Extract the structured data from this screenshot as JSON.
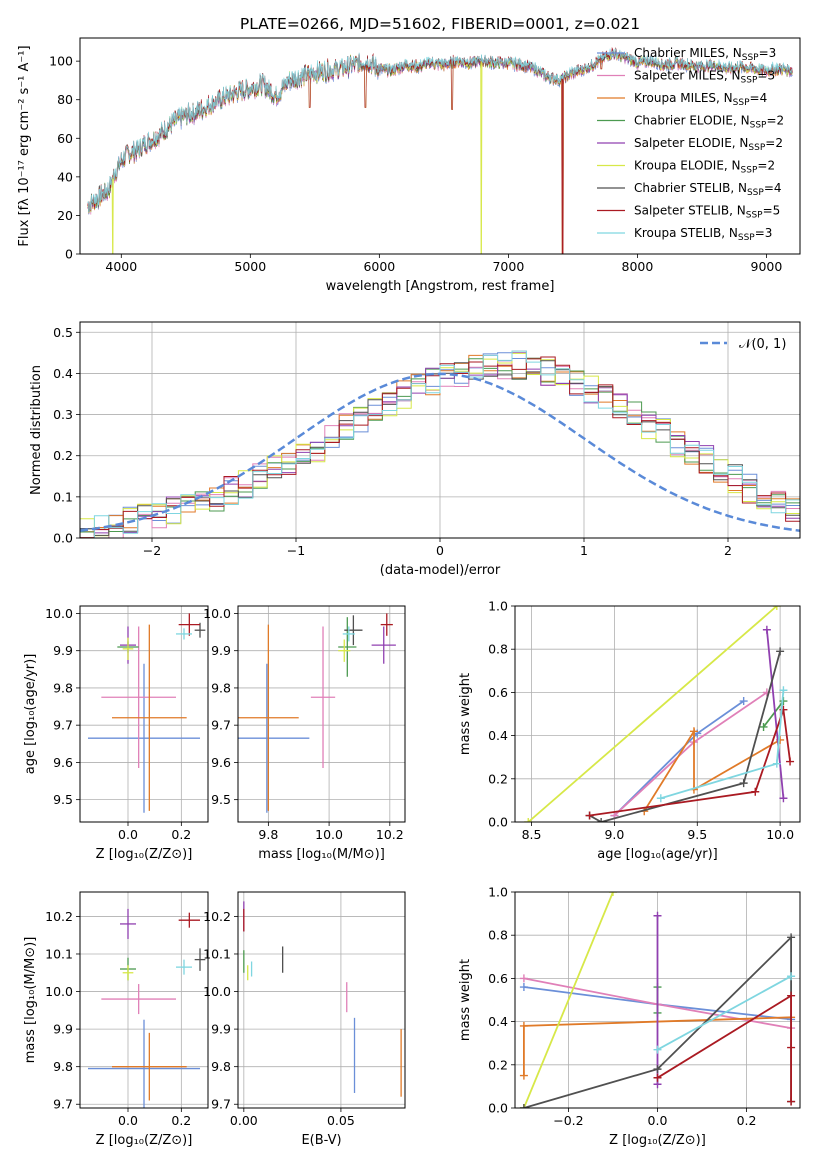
{
  "figure": {
    "title": "PLATE=0266, MJD=51602, FIBERID=0001, z=0.021"
  },
  "colors": {
    "Chabrier MILES": "#6b8fd8",
    "Salpeter MILES": "#e080b8",
    "Kroupa MILES": "#e07a28",
    "Chabrier ELODIE": "#4c9a50",
    "Salpeter ELODIE": "#9040b0",
    "Kroupa ELODIE": "#d7e848",
    "Chabrier STELIB": "#505050",
    "Salpeter STELIB": "#aa1a22",
    "Kroupa STELIB": "#7fd6e0"
  },
  "chart_data": [
    {
      "id": "spectrum",
      "type": "line",
      "title": "PLATE=0266, MJD=51602, FIBERID=0001, z=0.021",
      "xlabel": "wavelength [Angstrom, rest frame]",
      "ylabel": "Flux [fλ 10⁻¹⁷ erg cm⁻² s⁻¹ A⁻¹]",
      "xlim": [
        3680,
        9260
      ],
      "ylim": [
        0,
        112
      ],
      "xticks": [
        4000,
        5000,
        6000,
        7000,
        8000,
        9000
      ],
      "yticks": [
        0,
        20,
        40,
        60,
        80,
        100
      ],
      "grid": false,
      "legend_position": "right",
      "continuum_x": [
        3740,
        3800,
        3900,
        3950,
        4000,
        4050,
        4100,
        4150,
        4200,
        4300,
        4400,
        4500,
        4600,
        4700,
        4800,
        4900,
        5000,
        5100,
        5200,
        5300,
        5400,
        5500,
        5600,
        5700,
        5800,
        5900,
        6000,
        6100,
        6200,
        6300,
        6400,
        6500,
        6600,
        6700,
        6800,
        6900,
        7000,
        7100,
        7200,
        7300,
        7400,
        7500,
        7600,
        7700,
        7800,
        7900,
        8000,
        8100,
        8200,
        8300,
        8400,
        8500,
        8600,
        8700,
        8800,
        8900,
        9000,
        9100,
        9200
      ],
      "continuum_y": [
        25,
        28,
        33,
        42,
        48,
        52,
        53,
        55,
        58,
        62,
        68,
        72,
        74,
        78,
        81,
        84,
        86,
        88,
        82,
        90,
        92,
        94,
        95,
        96,
        98,
        100,
        96,
        95,
        98,
        97,
        99,
        98,
        100,
        99,
        100,
        99,
        99,
        98,
        96,
        92,
        90,
        94,
        96,
        100,
        104,
        102,
        99,
        100,
        98,
        99,
        98,
        97,
        98,
        96,
        97,
        96,
        95,
        96,
        95
      ],
      "features": [
        {
          "x": 3934,
          "y": 0
        },
        {
          "x": 5460,
          "y": 76
        },
        {
          "x": 5892,
          "y": 76
        },
        {
          "x": 6563,
          "y": 75
        },
        {
          "x": 6790,
          "y": 0
        },
        {
          "x": 7420,
          "y": 0
        },
        {
          "x": 7720,
          "y": 96
        }
      ],
      "series": [
        {
          "name": "Chabrier MILES, N",
          "n": "3"
        },
        {
          "name": "Salpeter MILES, N",
          "n": "3"
        },
        {
          "name": "Kroupa MILES, N",
          "n": "4"
        },
        {
          "name": "Chabrier ELODIE, N",
          "n": "2"
        },
        {
          "name": "Salpeter ELODIE, N",
          "n": "2"
        },
        {
          "name": "Kroupa ELODIE, N",
          "n": "2"
        },
        {
          "name": "Chabrier STELIB, N",
          "n": "4"
        },
        {
          "name": "Salpeter STELIB, N",
          "n": "5"
        },
        {
          "name": "Kroupa STELIB, N",
          "n": "3"
        }
      ]
    },
    {
      "id": "residuals",
      "type": "histogram",
      "xlabel": "(data-model)/error",
      "ylabel": "Normed distribution",
      "xlim": [
        -2.5,
        2.5
      ],
      "ylim": [
        0,
        0.525
      ],
      "xticks": [
        -2,
        -1,
        0,
        1,
        2
      ],
      "yticks": [
        0.0,
        0.1,
        0.2,
        0.3,
        0.4,
        0.5
      ],
      "grid": true,
      "legend_position": "top-right",
      "legend_label": "𝒩(0, 1)",
      "bin_start": -2.5,
      "bin_width": 0.1,
      "mean_values": [
        0.02,
        0.025,
        0.03,
        0.04,
        0.05,
        0.055,
        0.065,
        0.075,
        0.09,
        0.1,
        0.115,
        0.13,
        0.15,
        0.165,
        0.18,
        0.2,
        0.22,
        0.245,
        0.27,
        0.29,
        0.31,
        0.33,
        0.35,
        0.37,
        0.38,
        0.39,
        0.4,
        0.41,
        0.415,
        0.42,
        0.42,
        0.415,
        0.405,
        0.39,
        0.375,
        0.36,
        0.345,
        0.325,
        0.3,
        0.275,
        0.255,
        0.23,
        0.21,
        0.19,
        0.165,
        0.145,
        0.12,
        0.1,
        0.08,
        0.065,
        0.05
      ],
      "gaussian_note": "N(0,1) density"
    },
    {
      "id": "age_vs_Z",
      "type": "errorbar",
      "xlabel": "Z [log₁₀(Z/Z⊙)]",
      "ylabel": "age  [log₁₀(age/yr)]",
      "xlim": [
        -0.18,
        0.3
      ],
      "ylim": [
        9.44,
        10.02
      ],
      "xticks": [
        0.0,
        0.2
      ],
      "yticks": [
        9.5,
        9.6,
        9.7,
        9.8,
        9.9,
        10.0
      ],
      "points": [
        {
          "model": "Chabrier MILES",
          "x": 0.06,
          "xerr": 0.21,
          "y": 9.665,
          "yerr": 0.2
        },
        {
          "model": "Salpeter MILES",
          "x": 0.04,
          "xerr": 0.14,
          "y": 9.775,
          "yerr": 0.19
        },
        {
          "model": "Kroupa MILES",
          "x": 0.08,
          "xerr": 0.14,
          "y": 9.72,
          "yerr": 0.25
        },
        {
          "model": "Chabrier ELODIE",
          "x": 0.0,
          "xerr": 0.04,
          "y": 9.91,
          "yerr": 0.015
        },
        {
          "model": "Salpeter ELODIE",
          "x": 0.0,
          "xerr": 0.03,
          "y": 9.915,
          "yerr": 0.05
        },
        {
          "model": "Kroupa ELODIE",
          "x": 0.0,
          "xerr": 0.02,
          "y": 9.905,
          "yerr": 0.03
        },
        {
          "model": "Chabrier STELIB",
          "x": 0.27,
          "xerr": 0.02,
          "y": 9.955,
          "yerr": 0.02
        },
        {
          "model": "Salpeter STELIB",
          "x": 0.23,
          "xerr": 0.04,
          "y": 9.97,
          "yerr": 0.03
        },
        {
          "model": "Kroupa STELIB",
          "x": 0.21,
          "xerr": 0.03,
          "y": 9.945,
          "yerr": 0.015
        }
      ]
    },
    {
      "id": "age_vs_mass",
      "type": "errorbar",
      "xlabel": "mass [log₁₀(M/M⊙)]",
      "ylabel": "",
      "xlim": [
        9.7,
        10.25
      ],
      "ylim": [
        9.44,
        10.02
      ],
      "xticks": [
        9.8,
        10.0,
        10.2
      ],
      "yticks": [
        9.5,
        9.6,
        9.7,
        9.8,
        9.9,
        10.0
      ],
      "points": [
        {
          "model": "Chabrier MILES",
          "x": 9.795,
          "xerr": 0.14,
          "y": 9.665,
          "yerr": 0.2
        },
        {
          "model": "Salpeter MILES",
          "x": 9.98,
          "xerr": 0.04,
          "y": 9.775,
          "yerr": 0.19
        },
        {
          "model": "Kroupa MILES",
          "x": 9.8,
          "xerr": 0.1,
          "y": 9.72,
          "yerr": 0.25
        },
        {
          "model": "Chabrier ELODIE",
          "x": 10.06,
          "xerr": 0.03,
          "y": 9.91,
          "yerr": 0.08
        },
        {
          "model": "Salpeter ELODIE",
          "x": 10.18,
          "xerr": 0.04,
          "y": 9.915,
          "yerr": 0.05
        },
        {
          "model": "Kroupa ELODIE",
          "x": 10.05,
          "xerr": 0.02,
          "y": 9.9,
          "yerr": 0.03
        },
        {
          "model": "Chabrier STELIB",
          "x": 10.08,
          "xerr": 0.03,
          "y": 9.955,
          "yerr": 0.04
        },
        {
          "model": "Salpeter STELIB",
          "x": 10.19,
          "xerr": 0.02,
          "y": 9.97,
          "yerr": 0.03
        },
        {
          "model": "Kroupa STELIB",
          "x": 10.065,
          "xerr": 0.02,
          "y": 9.945,
          "yerr": 0.02
        }
      ]
    },
    {
      "id": "weight_vs_age",
      "type": "line",
      "xlabel": "age  [log₁₀(age/yr)]",
      "ylabel": "mass weight",
      "xlim": [
        8.4,
        10.12
      ],
      "ylim": [
        0,
        1
      ],
      "xticks": [
        8.5,
        9.0,
        9.5,
        10.0
      ],
      "yticks": [
        0.0,
        0.2,
        0.4,
        0.6,
        0.8,
        1.0
      ],
      "grid": true,
      "series": [
        {
          "model": "Chabrier MILES",
          "x": [
            9.0,
            9.5,
            9.78
          ],
          "y": [
            0.03,
            0.41,
            0.56
          ]
        },
        {
          "model": "Salpeter MILES",
          "x": [
            9.0,
            9.48,
            9.92
          ],
          "y": [
            0.03,
            0.37,
            0.6
          ]
        },
        {
          "model": "Kroupa MILES",
          "x": [
            9.18,
            9.48,
            9.48,
            10.0
          ],
          "y": [
            0.05,
            0.42,
            0.15,
            0.38
          ]
        },
        {
          "model": "Chabrier ELODIE",
          "x": [
            9.9,
            10.02
          ],
          "y": [
            0.44,
            0.56
          ]
        },
        {
          "model": "Salpeter ELODIE",
          "x": [
            9.92,
            10.02
          ],
          "y": [
            0.89,
            0.11
          ]
        },
        {
          "model": "Kroupa ELODIE",
          "x": [
            8.48,
            9.98
          ],
          "y": [
            0.0,
            1.0
          ]
        },
        {
          "model": "Chabrier STELIB",
          "x": [
            8.85,
            8.92,
            9.78,
            10.0
          ],
          "y": [
            0.03,
            0.0,
            0.18,
            0.79
          ]
        },
        {
          "model": "Salpeter STELIB",
          "x": [
            8.85,
            9.85,
            10.02,
            10.06
          ],
          "y": [
            0.03,
            0.14,
            0.52,
            0.28
          ]
        },
        {
          "model": "Kroupa STELIB",
          "x": [
            9.28,
            9.98,
            10.02
          ],
          "y": [
            0.11,
            0.27,
            0.61
          ]
        }
      ]
    },
    {
      "id": "mass_vs_Z",
      "type": "errorbar",
      "xlabel": "Z [log₁₀(Z/Z⊙)]",
      "ylabel": "mass [log₁₀(M/M⊙)]",
      "xlim": [
        -0.18,
        0.3
      ],
      "ylim": [
        9.69,
        10.265
      ],
      "xticks": [
        0.0,
        0.2
      ],
      "yticks": [
        9.7,
        9.8,
        9.9,
        10.0,
        10.1,
        10.2
      ],
      "points": [
        {
          "model": "Chabrier MILES",
          "x": 0.06,
          "xerr": 0.21,
          "y": 9.795,
          "yerr": 0.13
        },
        {
          "model": "Salpeter MILES",
          "x": 0.04,
          "xerr": 0.14,
          "y": 9.98,
          "yerr": 0.04
        },
        {
          "model": "Kroupa MILES",
          "x": 0.08,
          "xerr": 0.14,
          "y": 9.8,
          "yerr": 0.09
        },
        {
          "model": "Chabrier ELODIE",
          "x": 0.0,
          "xerr": 0.03,
          "y": 10.06,
          "yerr": 0.03
        },
        {
          "model": "Salpeter ELODIE",
          "x": 0.0,
          "xerr": 0.03,
          "y": 10.18,
          "yerr": 0.04
        },
        {
          "model": "Kroupa ELODIE",
          "x": 0.0,
          "xerr": 0.02,
          "y": 10.05,
          "yerr": 0.02
        },
        {
          "model": "Chabrier STELIB",
          "x": 0.27,
          "xerr": 0.02,
          "y": 10.085,
          "yerr": 0.03
        },
        {
          "model": "Salpeter STELIB",
          "x": 0.23,
          "xerr": 0.04,
          "y": 10.19,
          "yerr": 0.02
        },
        {
          "model": "Kroupa STELIB",
          "x": 0.21,
          "xerr": 0.03,
          "y": 10.065,
          "yerr": 0.02
        }
      ]
    },
    {
      "id": "mass_vs_EBV",
      "type": "errorbar",
      "xlabel": "E(B-V)",
      "ylabel": "",
      "xlim": [
        -0.003,
        0.083
      ],
      "ylim": [
        9.69,
        10.265
      ],
      "xticks": [
        0.0,
        0.05
      ],
      "yticks": [
        9.7,
        9.8,
        9.9,
        10.0,
        10.1,
        10.2
      ],
      "points": [
        {
          "model": "Chabrier MILES",
          "x": 0.057,
          "xerr": 0.0,
          "y": 9.83,
          "yerr": 0.1
        },
        {
          "model": "Salpeter MILES",
          "x": 0.053,
          "xerr": 0.0,
          "y": 9.985,
          "yerr": 0.04
        },
        {
          "model": "Kroupa MILES",
          "x": 0.081,
          "xerr": 0.0,
          "y": 9.81,
          "yerr": 0.09
        },
        {
          "model": "Chabrier ELODIE",
          "x": 0.0,
          "xerr": 0.0,
          "y": 10.08,
          "yerr": 0.03
        },
        {
          "model": "Salpeter ELODIE",
          "x": 0.0,
          "xerr": 0.0,
          "y": 10.2,
          "yerr": 0.04
        },
        {
          "model": "Kroupa ELODIE",
          "x": 0.002,
          "xerr": 0.0,
          "y": 10.05,
          "yerr": 0.02
        },
        {
          "model": "Chabrier STELIB",
          "x": 0.02,
          "xerr": 0.0,
          "y": 10.085,
          "yerr": 0.035
        },
        {
          "model": "Salpeter STELIB",
          "x": 0.0,
          "xerr": 0.0,
          "y": 10.19,
          "yerr": 0.03
        },
        {
          "model": "Kroupa STELIB",
          "x": 0.004,
          "xerr": 0.0,
          "y": 10.06,
          "yerr": 0.02
        }
      ]
    },
    {
      "id": "weight_vs_Z",
      "type": "line",
      "xlabel": "Z [log₁₀(Z/Z⊙)]",
      "ylabel": "mass weight",
      "xlim": [
        -0.32,
        0.32
      ],
      "ylim": [
        0,
        1
      ],
      "xticks": [
        -0.2,
        0.0,
        0.2
      ],
      "yticks": [
        0.0,
        0.2,
        0.4,
        0.6,
        0.8,
        1.0
      ],
      "grid": true,
      "series": [
        {
          "model": "Chabrier MILES",
          "x": [
            -0.3,
            0.0,
            0.3
          ],
          "y": [
            0.56,
            0.48,
            0.41
          ]
        },
        {
          "model": "Salpeter MILES",
          "x": [
            -0.3,
            0.0,
            0.3
          ],
          "y": [
            0.6,
            0.48,
            0.37
          ]
        },
        {
          "model": "Kroupa MILES",
          "x": [
            -0.3,
            -0.3,
            0.3
          ],
          "y": [
            0.15,
            0.38,
            0.42
          ]
        },
        {
          "model": "Chabrier ELODIE",
          "x": [
            0.0,
            0.0
          ],
          "y": [
            0.56,
            0.44
          ]
        },
        {
          "model": "Salpeter ELODIE",
          "x": [
            0.0,
            0.0
          ],
          "y": [
            0.89,
            0.11
          ]
        },
        {
          "model": "Kroupa ELODIE",
          "x": [
            -0.3,
            -0.1
          ],
          "y": [
            0.0,
            1.0
          ]
        },
        {
          "model": "Chabrier STELIB",
          "x": [
            -0.3,
            0.0,
            0.3,
            0.3
          ],
          "y": [
            0.0,
            0.18,
            0.79,
            0.03
          ]
        },
        {
          "model": "Salpeter STELIB",
          "x": [
            0.0,
            0.3,
            0.3,
            0.3
          ],
          "y": [
            0.14,
            0.52,
            0.28,
            0.03
          ]
        },
        {
          "model": "Kroupa STELIB",
          "x": [
            0.0,
            0.3
          ],
          "y": [
            0.27,
            0.61
          ]
        }
      ]
    }
  ]
}
